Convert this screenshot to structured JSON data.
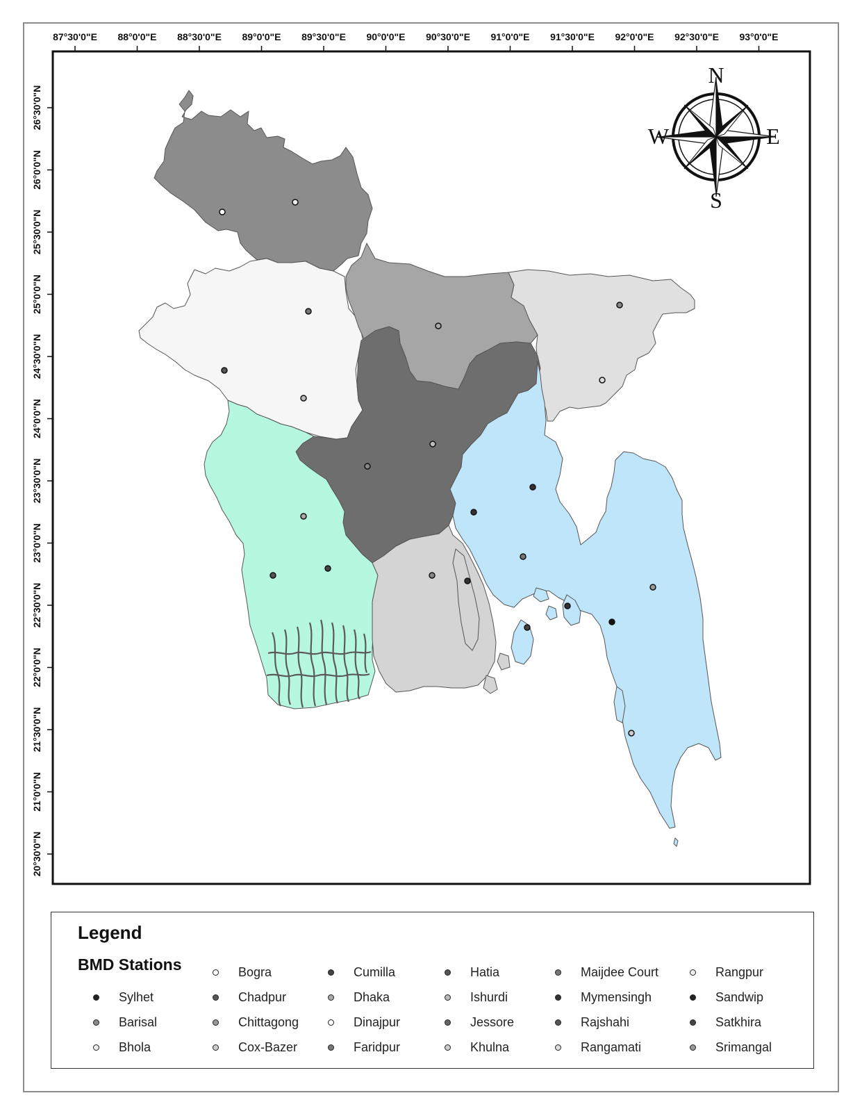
{
  "map": {
    "lon_labels": [
      "87°30'0\"E",
      "88°0'0\"E",
      "88°30'0\"E",
      "89°0'0\"E",
      "89°30'0\"E",
      "90°0'0\"E",
      "90°30'0\"E",
      "91°0'0\"E",
      "91°30'0\"E",
      "92°0'0\"E",
      "92°30'0\"E",
      "93°0'0\"E"
    ],
    "lat_labels": [
      "26°30'0\"N",
      "26°0'0\"N",
      "25°30'0\"N",
      "25°0'0\"N",
      "24°30'0\"N",
      "24°0'0\"N",
      "23°30'0\"N",
      "23°0'0\"N",
      "22°30'0\"N",
      "22°0'0\"N",
      "21°30'0\"N",
      "21°0'0\"N",
      "20°30'0\"N"
    ],
    "regions": [
      {
        "name": "Rangpur division",
        "color": "#8c8c8c"
      },
      {
        "name": "Rajshahi division",
        "color": "#f6f6f6"
      },
      {
        "name": "Mymensingh division",
        "color": "#a6a6a6"
      },
      {
        "name": "Sylhet division",
        "color": "#e0e0e0"
      },
      {
        "name": "Dhaka division",
        "color": "#6e6e6e"
      },
      {
        "name": "Khulna division",
        "color": "#b6f7e0"
      },
      {
        "name": "Barisal division",
        "color": "#d4d4d4"
      },
      {
        "name": "Chittagong division",
        "color": "#bfe5fb"
      }
    ]
  },
  "compass": {
    "n": "N",
    "s": "S",
    "e": "E",
    "w": "W"
  },
  "legend": {
    "title": "Legend",
    "subtitle": "BMD Stations",
    "stations": [
      {
        "label": "Sylhet",
        "fill": "#222222"
      },
      {
        "label": "Barisal",
        "fill": "#888888"
      },
      {
        "label": "Bhola",
        "fill": "#eeeeee"
      },
      {
        "label": "Bogra",
        "fill": "#ffffff"
      },
      {
        "label": "Chadpur",
        "fill": "#555555"
      },
      {
        "label": "Chittagong",
        "fill": "#999999"
      },
      {
        "label": "Cox-Bazer",
        "fill": "#cccccc"
      },
      {
        "label": "Cumilla",
        "fill": "#444444"
      },
      {
        "label": "Dhaka",
        "fill": "#aaaaaa"
      },
      {
        "label": "Dinajpur",
        "fill": "#ffffff"
      },
      {
        "label": "Faridpur",
        "fill": "#777777"
      },
      {
        "label": "Hatia",
        "fill": "#555555"
      },
      {
        "label": "Ishurdi",
        "fill": "#bbbbbb"
      },
      {
        "label": "Jessore",
        "fill": "#666666"
      },
      {
        "label": "Khulna",
        "fill": "#cccccc"
      },
      {
        "label": "Maijdee Court",
        "fill": "#777777"
      },
      {
        "label": "Mymensingh",
        "fill": "#333333"
      },
      {
        "label": "Rajshahi",
        "fill": "#555555"
      },
      {
        "label": "Rangamati",
        "fill": "#dddddd"
      },
      {
        "label": "Rangpur",
        "fill": "#eeeeee"
      },
      {
        "label": "Sandwip",
        "fill": "#222222"
      },
      {
        "label": "Satkhira",
        "fill": "#444444"
      },
      {
        "label": "Srimangal",
        "fill": "#999999"
      }
    ]
  }
}
